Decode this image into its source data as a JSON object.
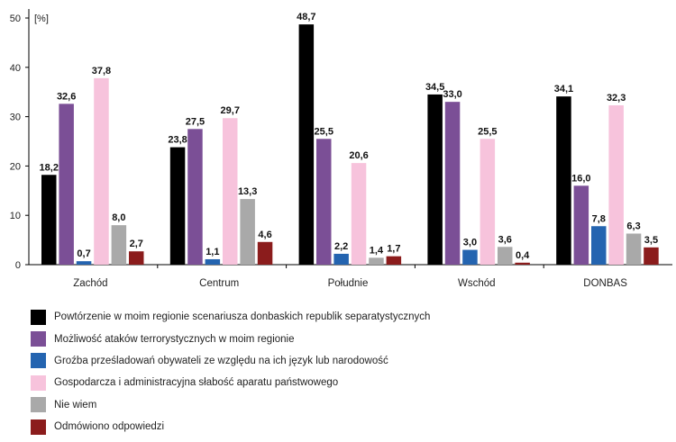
{
  "chart_data": {
    "type": "bar",
    "title": "",
    "xlabel": "",
    "ylabel": "[%]",
    "ylim": [
      0,
      50
    ],
    "yticks": [
      0,
      10,
      20,
      30,
      40,
      50
    ],
    "grid": false,
    "legend_position": "bottom",
    "categories": [
      "Zachód",
      "Centrum",
      "Południe",
      "Wschód",
      "DONBAS"
    ],
    "series": [
      {
        "name": "Powtórzenie w moim regionie scenariusza donbaskich republik separatystycznych",
        "color": "#000000",
        "values": [
          18.2,
          23.8,
          48.7,
          34.5,
          34.1
        ],
        "labels": [
          "18,2",
          "23,8",
          "48,7",
          "34,5",
          "34,1"
        ]
      },
      {
        "name": "Możliwość ataków terrorystycznych w moim regionie",
        "color": "#7b4f96",
        "values": [
          32.6,
          27.5,
          25.5,
          33.0,
          16.0
        ],
        "labels": [
          "32,6",
          "27,5",
          "25,5",
          "33,0",
          "16,0"
        ]
      },
      {
        "name": "Groźba prześladowań obywateli ze względu na ich język lub narodowość",
        "color": "#2464b0",
        "values": [
          0.7,
          1.1,
          2.2,
          3.0,
          7.8
        ],
        "labels": [
          "0,7",
          "1,1",
          "2,2",
          "3,0",
          "7,8"
        ]
      },
      {
        "name": "Gospodarcza i administracyjna słabość aparatu państwowego",
        "color": "#f7c3dc",
        "values": [
          37.8,
          29.7,
          20.6,
          25.5,
          32.3
        ],
        "labels": [
          "37,8",
          "29,7",
          "20,6",
          "25,5",
          "32,3"
        ]
      },
      {
        "name": "Nie wiem",
        "color": "#a9a9a9",
        "values": [
          8.0,
          13.3,
          1.4,
          3.6,
          6.3
        ],
        "labels": [
          "8,0",
          "13,3",
          "1,4",
          "3,6",
          "6,3"
        ]
      },
      {
        "name": "Odmówiono odpowiedzi",
        "color": "#8b1c1c",
        "values": [
          2.7,
          4.6,
          1.7,
          0.4,
          3.5
        ],
        "labels": [
          "2,7",
          "4,6",
          "1,7",
          "0,4",
          "3,5"
        ]
      }
    ]
  }
}
